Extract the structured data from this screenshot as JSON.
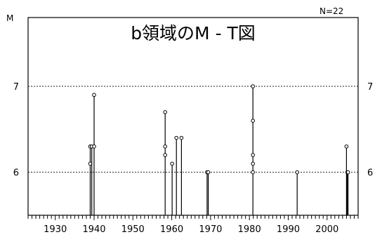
{
  "chart_data": {
    "type": "scatter",
    "style": "stem plot (vertical lines from x-axis to each point, small open circle markers)",
    "title": "b領域のM - T図",
    "count_label": "N=22",
    "ylabel": "M",
    "xlim": [
      1923,
      2008
    ],
    "ylim": [
      5.5,
      7.8
    ],
    "x_ticks": [
      1930,
      1940,
      1950,
      1960,
      1970,
      1980,
      1990,
      2000
    ],
    "x_minor_tick_step": 1,
    "y_ticks": [
      6,
      7
    ],
    "y_ticks_mirrored_right": true,
    "grid": "horizontal dotted lines at y ticks",
    "colors": {
      "line": "#000000",
      "marker_fill": "#ffffff",
      "grid": "#000000"
    },
    "points": [
      {
        "x": 1939.0,
        "y": 6.3
      },
      {
        "x": 1939.0,
        "y": 6.1
      },
      {
        "x": 1939.4,
        "y": 6.3
      },
      {
        "x": 1940.0,
        "y": 6.9
      },
      {
        "x": 1940.0,
        "y": 6.3
      },
      {
        "x": 1958.3,
        "y": 6.7
      },
      {
        "x": 1958.3,
        "y": 6.3
      },
      {
        "x": 1958.3,
        "y": 6.2
      },
      {
        "x": 1960.1,
        "y": 6.1
      },
      {
        "x": 1961.2,
        "y": 6.4
      },
      {
        "x": 1962.5,
        "y": 6.4
      },
      {
        "x": 1969.1,
        "y": 6.0
      },
      {
        "x": 1969.4,
        "y": 6.0
      },
      {
        "x": 1980.9,
        "y": 7.0
      },
      {
        "x": 1980.9,
        "y": 6.6
      },
      {
        "x": 1980.9,
        "y": 6.2
      },
      {
        "x": 1980.9,
        "y": 6.1
      },
      {
        "x": 1980.9,
        "y": 6.0
      },
      {
        "x": 1992.3,
        "y": 6.0
      },
      {
        "x": 2005.0,
        "y": 6.3
      },
      {
        "x": 2005.2,
        "y": 6.0
      },
      {
        "x": 2005.4,
        "y": 6.0
      }
    ]
  }
}
